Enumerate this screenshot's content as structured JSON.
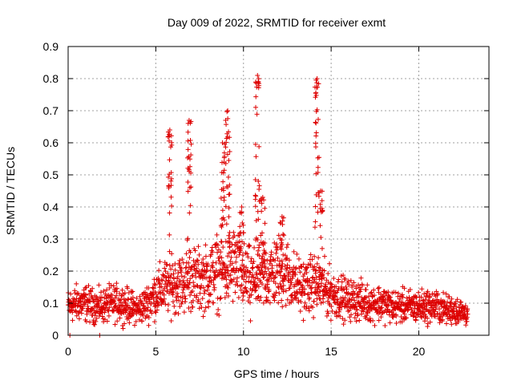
{
  "chart_data": {
    "type": "scatter",
    "title": "Day 009 of 2022, SRMTID for receiver exmt",
    "xlabel": "GPS time / hours",
    "ylabel": "SRMTID / TECUs",
    "xlim": [
      0,
      24
    ],
    "ylim": [
      0,
      0.9
    ],
    "x_ticks": [
      0,
      5,
      10,
      15,
      20
    ],
    "y_ticks": [
      0,
      0.1,
      0.2,
      0.3,
      0.4,
      0.5,
      0.6,
      0.7,
      0.8,
      0.9
    ],
    "x_tick_labels": [
      "0",
      "5",
      "10",
      "15",
      "20"
    ],
    "y_tick_labels": [
      "0",
      "0.1",
      "0.2",
      "0.3",
      "0.4",
      "0.5",
      "0.6",
      "0.7",
      "0.8",
      "0.9"
    ],
    "grid": true,
    "marker": "+",
    "color": "#dd0000",
    "series": [
      {
        "name": "SRMTID",
        "envelope": [
          [
            0.0,
            0.09
          ],
          [
            0.5,
            0.1
          ],
          [
            1.0,
            0.1
          ],
          [
            1.5,
            0.09
          ],
          [
            2.0,
            0.09
          ],
          [
            2.5,
            0.1
          ],
          [
            3.0,
            0.1
          ],
          [
            3.5,
            0.09
          ],
          [
            4.0,
            0.08
          ],
          [
            4.5,
            0.1
          ],
          [
            5.0,
            0.13
          ],
          [
            5.5,
            0.15
          ],
          [
            6.0,
            0.16
          ],
          [
            6.5,
            0.16
          ],
          [
            7.0,
            0.18
          ],
          [
            7.5,
            0.17
          ],
          [
            8.0,
            0.18
          ],
          [
            8.5,
            0.2
          ],
          [
            9.0,
            0.2
          ],
          [
            9.5,
            0.22
          ],
          [
            10.0,
            0.18
          ],
          [
            10.5,
            0.17
          ],
          [
            11.0,
            0.18
          ],
          [
            11.5,
            0.19
          ],
          [
            12.0,
            0.2
          ],
          [
            12.5,
            0.19
          ],
          [
            13.0,
            0.16
          ],
          [
            13.5,
            0.15
          ],
          [
            14.0,
            0.16
          ],
          [
            14.5,
            0.15
          ],
          [
            15.0,
            0.13
          ],
          [
            15.5,
            0.12
          ],
          [
            16.0,
            0.11
          ],
          [
            16.5,
            0.11
          ],
          [
            17.0,
            0.1
          ],
          [
            17.5,
            0.1
          ],
          [
            18.0,
            0.1
          ],
          [
            18.5,
            0.09
          ],
          [
            19.0,
            0.09
          ],
          [
            19.5,
            0.09
          ],
          [
            20.0,
            0.09
          ],
          [
            20.5,
            0.09
          ],
          [
            21.0,
            0.09
          ],
          [
            21.5,
            0.08
          ],
          [
            22.0,
            0.08
          ],
          [
            22.5,
            0.07
          ],
          [
            22.8,
            0.07
          ]
        ],
        "peaks": [
          {
            "x": 5.8,
            "y": 0.64
          },
          {
            "x": 6.9,
            "y": 0.67
          },
          {
            "x": 8.8,
            "y": 0.6
          },
          {
            "x": 9.1,
            "y": 0.7
          },
          {
            "x": 9.9,
            "y": 0.4
          },
          {
            "x": 10.8,
            "y": 0.81
          },
          {
            "x": 11.1,
            "y": 0.43
          },
          {
            "x": 12.2,
            "y": 0.37
          },
          {
            "x": 14.2,
            "y": 0.8
          },
          {
            "x": 14.4,
            "y": 0.45
          }
        ],
        "outliers": [
          [
            0.1,
            0.0
          ],
          [
            1.8,
            0.0
          ],
          [
            10.4,
            0.045
          ]
        ]
      }
    ]
  }
}
